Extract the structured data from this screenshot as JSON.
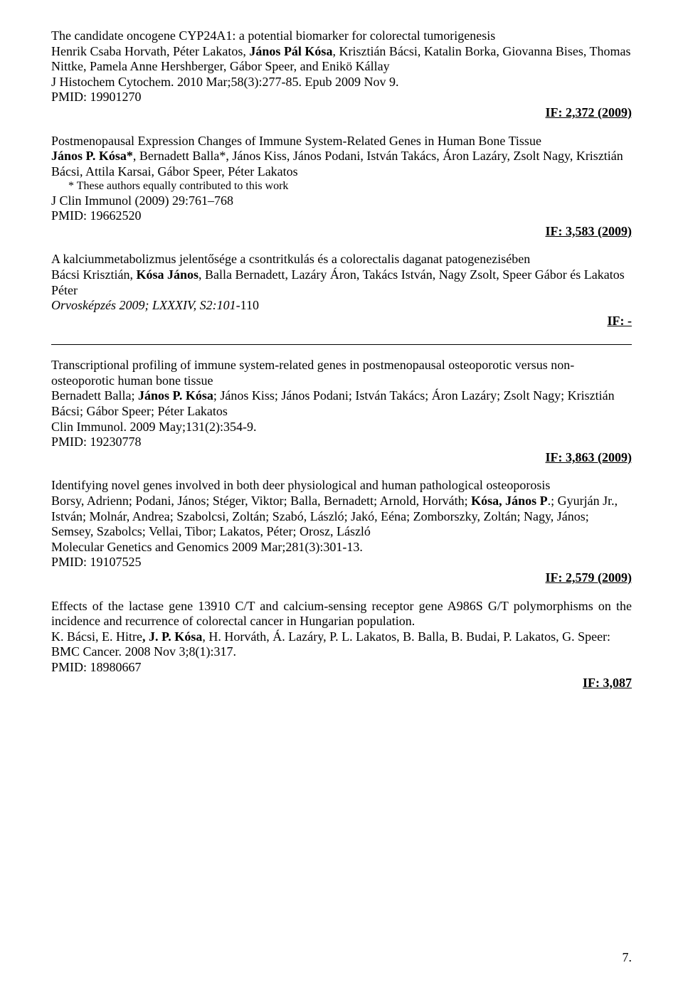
{
  "entries": [
    {
      "title": "The candidate oncogene CYP24A1: a potential biomarker for colorectal tumorigenesis",
      "authors_html": "Henrik Csaba Horvath, Péter Lakatos, <b>János Pál Kósa</b>, Krisztián Bácsi, Katalin Borka, Giovanna Bises, Thomas Nittke, Pamela Anne Hershberger, Gábor Speer, and Enikö Kállay",
      "journal": "J Histochem Cytochem. 2010 Mar;58(3):277-85. Epub 2009 Nov 9.",
      "pmid": "PMID: 19901270",
      "if": "IF: 2,372 (2009)"
    },
    {
      "title": "Postmenopausal Expression Changes of Immune System-Related Genes in Human Bone Tissue",
      "authors_html": "<b>János P. Kósa*</b>, Bernadett Balla*, János Kiss, János Podani, István Takács, Áron Lazáry, Zsolt Nagy, Krisztián Bácsi, Attila Karsai, Gábor Speer, Péter Lakatos",
      "note": "* These authors equally contributed to this work",
      "journal": "J Clin Immunol (2009) 29:761–768",
      "pmid": "PMID: 19662520",
      "if": "IF: 3,583 (2009)"
    },
    {
      "title": "A kalciummetabolizmus jelentősége a csontritkulás és a colorectalis daganat patogenezisében",
      "authors_html": "Bácsi Krisztián, <b>Kósa János</b>, Balla Bernadett, Lazáry Áron, Takács István, Nagy Zsolt, Speer Gábor és Lakatos Péter",
      "journal_italic": "Orvosképzés 2009; LXXXIV, S2:101-",
      "journal_tail": "110",
      "if": "IF: -"
    },
    {
      "title": "Transcriptional profiling of immune system-related genes in postmenopausal osteoporotic versus non-osteoporotic human bone tissue",
      "authors_html": "Bernadett Balla; <b>János P. Kósa</b>; János Kiss; János Podani; István Takács; Áron Lazáry; Zsolt Nagy; Krisztián Bácsi; Gábor Speer; Péter Lakatos",
      "journal": "Clin Immunol. 2009 May;131(2):354-9.",
      "pmid": "PMID: 19230778",
      "if": "IF: 3,863 (2009)"
    },
    {
      "title": "Identifying novel genes involved in both deer physiological and human pathological osteoporosis",
      "authors_html": "Borsy, Adrienn; Podani, János; Stéger, Viktor; Balla, Bernadett; Arnold, Horváth; <b>Kósa, János P</b>.; Gyurján Jr., István; Molnár, Andrea; Szabolcsi, Zoltán; Szabó, László; Jakó, Eéna; Zomborszky, Zoltán; Nagy, János; Semsey, Szabolcs; Vellai, Tibor; Lakatos, Péter; Orosz, László",
      "journal": "Molecular Genetics and Genomics 2009 Mar;281(3):301-13.",
      "pmid": "PMID: 19107525",
      "if": "IF: 2,579 (2009)"
    },
    {
      "title_justify": "Effects of the lactase gene 13910 C/T and calcium-sensing receptor gene A986S G/T polymorphisms on the incidence and recurrence of colorectal cancer in Hungarian population.",
      "authors_html_justify": "K. Bácsi, E. Hitre<b>, J. P. Kósa</b>, H. Horváth, Á. Lazáry, P. L. Lakatos, B. Balla, B. Budai, P. Lakatos, G. Speer:",
      "journal": "BMC Cancer. 2008 Nov 3;8(1):317.",
      "pmid": "PMID: 18980667",
      "if": "IF: 3,087"
    }
  ],
  "pageNumber": "7."
}
